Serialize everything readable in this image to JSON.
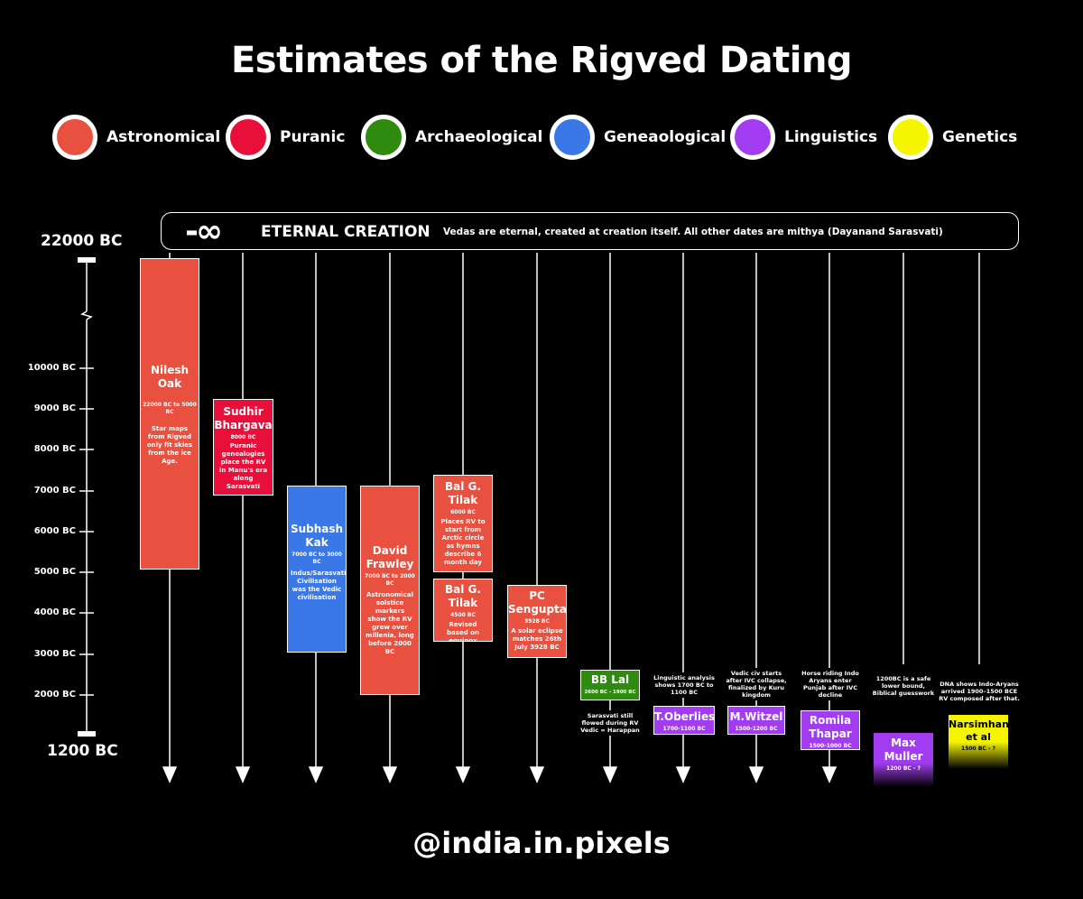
{
  "title": "Estimates of the Rigved Dating",
  "legend": [
    {
      "label": "Astronomical",
      "color": "#e85040"
    },
    {
      "label": "Puranic",
      "color": "#e8103a"
    },
    {
      "label": "Archaeological",
      "color": "#2e8b10"
    },
    {
      "label": "Geneaological",
      "color": "#3a78e8"
    },
    {
      "label": "Linguistics",
      "color": "#a23cf0"
    },
    {
      "label": "Genetics",
      "color": "#f5f500"
    }
  ],
  "eternal": {
    "symbol": "-∞",
    "title": "ETERNAL CREATION",
    "desc": "Vedas are eternal, created at creation itself. All other dates are mithya (Dayanand Sarasvati)"
  },
  "axis": {
    "top_label": "22000 BC",
    "bottom_label": "1200 BC",
    "ticks": [
      "10000 BC",
      "9000 BC",
      "8000 BC",
      "7000 BC",
      "6000 BC",
      "5000 BC",
      "4000 BC",
      "3000 BC",
      "2000 BC"
    ]
  },
  "estimates": {
    "oak": {
      "name": "Nilesh Oak",
      "range": "22000 BC to 5000 BC",
      "desc": "Star maps from Rigved only fit skies from the ice Age."
    },
    "bhargava": {
      "name": "Sudhir Bhargava",
      "range": "8000 BC",
      "desc": "Puranic genealogies place the RV in Manu's era along Sarasvati"
    },
    "kak": {
      "name": "Subhash Kak",
      "range": "7000 BC to 3000 BC",
      "desc": "Indus/Sarasvati Civilisation was the Vedic civilisation"
    },
    "frawley": {
      "name": "David Frawley",
      "range": "7000 BC to 2000 BC",
      "desc": "Astronomical solstice markers show the RV grew over millenia, long before 2000 BC"
    },
    "tilak1": {
      "name": "Bal G. Tilak",
      "range": "6000 BC",
      "desc": "Places RV to start from Arctic circle as hymns describe 6 month day"
    },
    "tilak2": {
      "name": "Bal G. Tilak",
      "range": "4500 BC",
      "desc": "Revised based on equinox"
    },
    "sengupta": {
      "name": "PC Sengupta",
      "range": "3928 BC",
      "desc": "A solar eclipse matches 26th July 3928 BC"
    },
    "lal": {
      "name": "BB Lal",
      "range": "2600 BC - 1900 BC",
      "note": "Sarasvati still flowed during RV Vedic = Harappan"
    },
    "oberlies": {
      "name": "T.Oberlies",
      "range": "1700-1100 BC",
      "note": "Linguistic analysis shows 1700 BC to 1100 BC"
    },
    "witzel": {
      "name": "M.Witzel",
      "range": "1500-1200 BC",
      "note": "Vedic civ starts after IVC collapse, finalized by Kuru kingdom"
    },
    "thapar": {
      "name": "Romila Thapar",
      "range": "1500-1000 BC",
      "note": "Horse riding Indo Aryans enter Punjab after IVC decline"
    },
    "muller": {
      "name": "Max Muller",
      "range": "1200 BC - ?",
      "note": "1200BC is a safe lower bound, Biblical guesswork"
    },
    "narsimhan": {
      "name": "Narsimhan et al",
      "range": "1500 BC - ?",
      "note": "DNA shows Indo-Aryans arrived 1900–1500 BCE RV composed after that."
    }
  },
  "handle": "@india.in.pixels"
}
